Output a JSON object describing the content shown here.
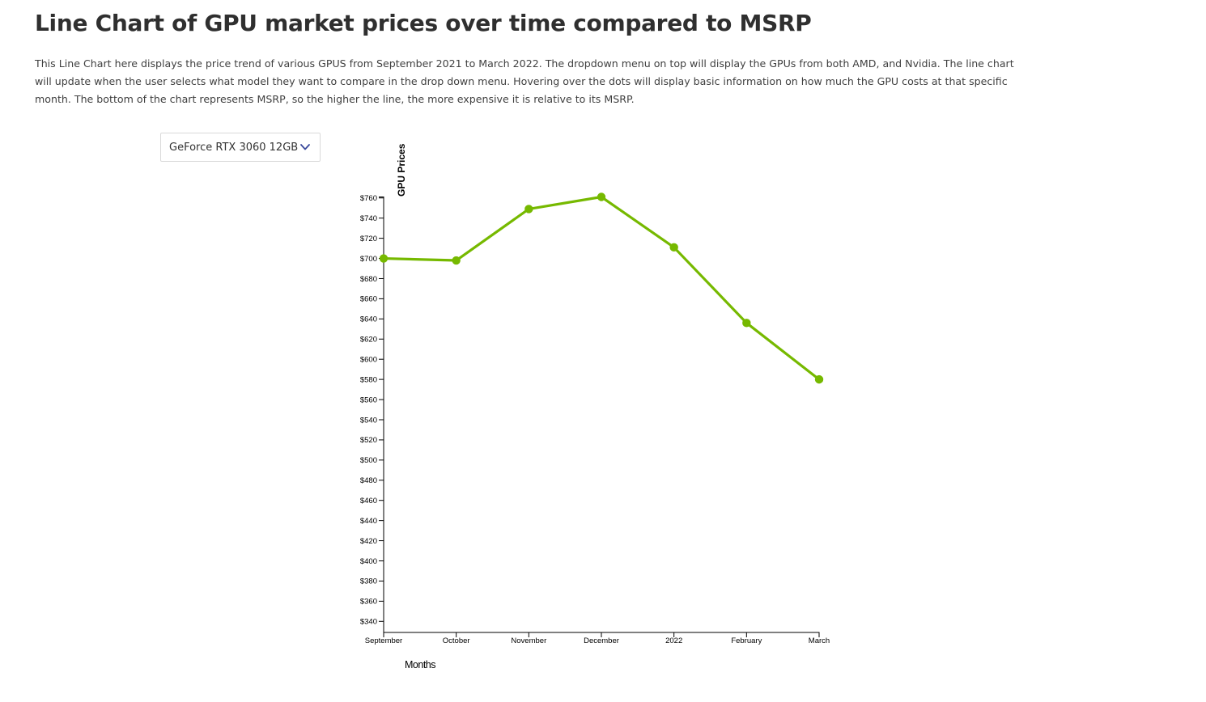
{
  "page": {
    "title": "Line Chart of GPU market prices over time compared to MSRP",
    "description": "This Line Chart here displays the price trend of various GPUS from September 2021 to March 2022. The dropdown menu on top will display the GPUs from both AMD, and Nvidia. The line chart will update when the user selects what model they want to compare in the drop down menu. Hovering over the dots will display basic information on how much the GPU costs at that specific month. The bottom of the chart represents MSRP, so the higher the line, the more expensive it is relative to its MSRP."
  },
  "dropdown": {
    "selected": "GeForce RTX 3060 12GB",
    "icon": "chevron-down-icon"
  },
  "chart_data": {
    "type": "line",
    "title": "",
    "xlabel": "Months",
    "ylabel": "GPU Prices",
    "categories": [
      "September",
      "October",
      "November",
      "December",
      "2022",
      "February",
      "March"
    ],
    "series": [
      {
        "values": [
          700,
          698,
          749,
          761,
          711,
          636,
          580
        ],
        "color": "#76b900"
      }
    ],
    "ylim": [
      329,
      761
    ],
    "y_ticks": [
      340,
      360,
      380,
      400,
      420,
      440,
      460,
      480,
      500,
      520,
      540,
      560,
      580,
      600,
      620,
      640,
      660,
      680,
      700,
      720,
      740,
      760
    ],
    "y_tick_format": "$",
    "grid": false,
    "legend": "none"
  }
}
